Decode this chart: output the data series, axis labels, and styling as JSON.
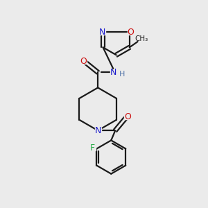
{
  "background_color": "#ebebeb",
  "bond_color": "#1a1a1a",
  "line_width": 1.6,
  "figsize": [
    3.0,
    3.0
  ],
  "dpi": 100,
  "colors": {
    "N": "#1a1acc",
    "O": "#cc1111",
    "F": "#22aa44",
    "H": "#5577aa",
    "C": "#1a1a1a"
  }
}
